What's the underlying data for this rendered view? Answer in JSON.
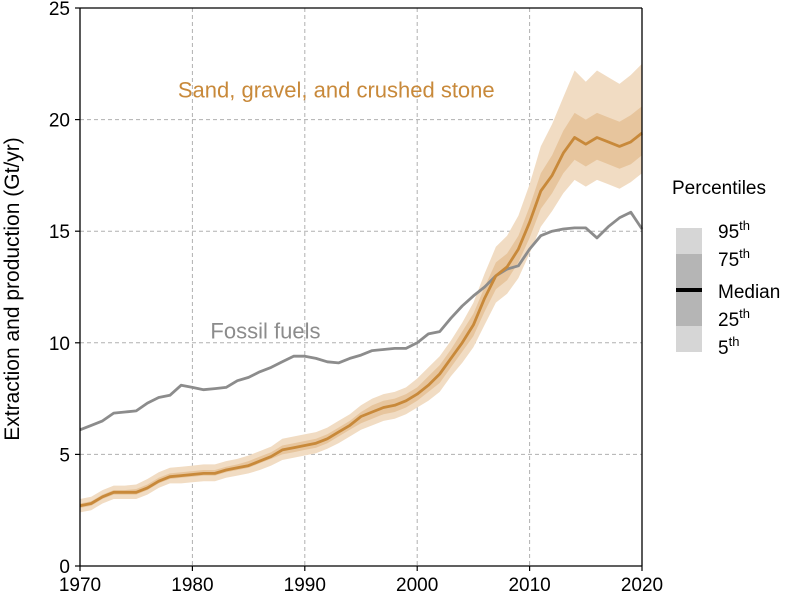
{
  "chart_data": {
    "type": "line",
    "xlabel": "",
    "ylabel": "Extraction and production (Gt/yr)",
    "xlim": [
      1970,
      2020
    ],
    "ylim": [
      0,
      25
    ],
    "xticks": [
      1970,
      1980,
      1990,
      2000,
      2010,
      2020
    ],
    "yticks": [
      0,
      5,
      10,
      15,
      20,
      25
    ],
    "grid": true,
    "legend": {
      "title": "Percentiles",
      "placement": "right",
      "entries": [
        {
          "label": "95",
          "sup": "th"
        },
        {
          "label": "75",
          "sup": "th"
        },
        {
          "label": "Median",
          "sup": ""
        },
        {
          "label": "25",
          "sup": "th"
        },
        {
          "label": "5",
          "sup": "th"
        }
      ]
    },
    "annotations": [
      {
        "text": "Sand, gravel, and crushed stone",
        "color": "#c8893a",
        "x": 1992.8,
        "y": 21.0
      },
      {
        "text": "Fossil fuels",
        "color": "#8c8c8c",
        "x": 1986.5,
        "y": 10.2
      }
    ],
    "colors": {
      "sand_line": "#c8893a",
      "band_outer": "#f1dcc3",
      "band_inner": "#e7c59d",
      "fossil": "#8c8c8c",
      "legend_light": "#d6d6d6",
      "legend_dark": "#b5b5b5",
      "legend_median": "#000000"
    },
    "x": [
      1970,
      1971,
      1972,
      1973,
      1974,
      1975,
      1976,
      1977,
      1978,
      1979,
      1980,
      1981,
      1982,
      1983,
      1984,
      1985,
      1986,
      1987,
      1988,
      1989,
      1990,
      1991,
      1992,
      1993,
      1994,
      1995,
      1996,
      1997,
      1998,
      1999,
      2000,
      2001,
      2002,
      2003,
      2004,
      2005,
      2006,
      2007,
      2008,
      2009,
      2010,
      2011,
      2012,
      2013,
      2014,
      2015,
      2016,
      2017,
      2018,
      2019,
      2020
    ],
    "series": [
      {
        "name": "Sand, gravel, and crushed stone",
        "median": [
          2.7,
          2.8,
          3.1,
          3.3,
          3.3,
          3.3,
          3.5,
          3.8,
          4.0,
          4.05,
          4.1,
          4.15,
          4.15,
          4.3,
          4.4,
          4.5,
          4.7,
          4.9,
          5.2,
          5.3,
          5.4,
          5.5,
          5.7,
          6.0,
          6.3,
          6.7,
          6.9,
          7.1,
          7.2,
          7.4,
          7.7,
          8.1,
          8.6,
          9.3,
          10.0,
          10.8,
          12.0,
          13.0,
          13.4,
          14.2,
          15.4,
          16.8,
          17.5,
          18.5,
          19.2,
          18.9,
          19.2,
          19.0,
          18.8,
          19.0,
          19.4
        ],
        "p25": [
          2.6,
          2.7,
          3.0,
          3.2,
          3.2,
          3.2,
          3.4,
          3.7,
          3.9,
          3.95,
          4.0,
          4.05,
          4.05,
          4.2,
          4.3,
          4.4,
          4.6,
          4.8,
          5.0,
          5.1,
          5.2,
          5.3,
          5.5,
          5.8,
          6.1,
          6.4,
          6.6,
          6.8,
          6.9,
          7.1,
          7.4,
          7.8,
          8.2,
          8.9,
          9.6,
          10.3,
          11.4,
          12.4,
          12.8,
          13.6,
          14.7,
          16.0,
          16.7,
          17.6,
          18.2,
          17.9,
          18.2,
          18.0,
          17.8,
          18.0,
          18.4
        ],
        "p75": [
          2.8,
          2.9,
          3.2,
          3.4,
          3.4,
          3.45,
          3.65,
          3.95,
          4.15,
          4.2,
          4.25,
          4.3,
          4.3,
          4.45,
          4.55,
          4.7,
          4.9,
          5.1,
          5.4,
          5.5,
          5.6,
          5.7,
          5.9,
          6.2,
          6.5,
          6.9,
          7.2,
          7.4,
          7.5,
          7.7,
          8.0,
          8.5,
          9.0,
          9.7,
          10.5,
          11.3,
          12.5,
          13.6,
          14.0,
          14.8,
          16.1,
          17.6,
          18.4,
          19.5,
          20.3,
          20.0,
          20.3,
          20.1,
          19.9,
          20.2,
          20.6
        ],
        "p5": [
          2.4,
          2.5,
          2.8,
          3.0,
          3.0,
          3.0,
          3.2,
          3.5,
          3.7,
          3.7,
          3.75,
          3.8,
          3.8,
          3.95,
          4.05,
          4.15,
          4.3,
          4.5,
          4.75,
          4.85,
          4.95,
          5.05,
          5.25,
          5.5,
          5.8,
          6.1,
          6.3,
          6.5,
          6.6,
          6.8,
          7.1,
          7.4,
          7.8,
          8.5,
          9.1,
          9.8,
          10.8,
          11.8,
          12.2,
          12.9,
          14.0,
          15.2,
          15.9,
          16.7,
          17.3,
          17.0,
          17.3,
          17.1,
          16.9,
          17.2,
          17.6
        ],
        "p95": [
          3.0,
          3.1,
          3.4,
          3.6,
          3.6,
          3.65,
          3.9,
          4.2,
          4.4,
          4.45,
          4.5,
          4.55,
          4.55,
          4.7,
          4.8,
          4.95,
          5.15,
          5.35,
          5.7,
          5.8,
          5.9,
          6.0,
          6.2,
          6.5,
          6.8,
          7.2,
          7.5,
          7.7,
          7.8,
          8.0,
          8.4,
          8.9,
          9.4,
          10.1,
          10.9,
          11.8,
          13.1,
          14.3,
          14.8,
          15.7,
          17.1,
          18.8,
          19.8,
          21.0,
          22.2,
          21.7,
          22.2,
          21.9,
          21.6,
          22.0,
          22.5
        ]
      },
      {
        "name": "Fossil fuels",
        "values": [
          6.1,
          6.3,
          6.5,
          6.85,
          6.9,
          6.95,
          7.3,
          7.55,
          7.65,
          8.1,
          8.0,
          7.9,
          7.95,
          8.0,
          8.3,
          8.45,
          8.7,
          8.9,
          9.15,
          9.4,
          9.4,
          9.3,
          9.15,
          9.1,
          9.3,
          9.45,
          9.65,
          9.7,
          9.75,
          9.75,
          10.0,
          10.4,
          10.5,
          11.1,
          11.65,
          12.1,
          12.5,
          13.0,
          13.3,
          13.45,
          14.2,
          14.8,
          15.0,
          15.1,
          15.15,
          15.15,
          14.7,
          15.2,
          15.6,
          15.85,
          15.1
        ]
      }
    ]
  }
}
